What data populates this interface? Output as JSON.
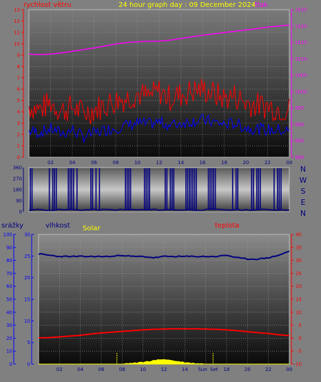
{
  "header": {
    "left_label": "rychlost větru",
    "center_label": "24 hour graph day : 09 December 2024",
    "right_label": "tlak"
  },
  "middle": {
    "direction_letters": [
      "N",
      "W",
      "S",
      "E",
      "N"
    ]
  },
  "bottom_header": {
    "rain_label": "srážky",
    "humidity_label": "vlhkost",
    "solar_label": "Solar",
    "temp_label": "teplota"
  },
  "colors": {
    "wind_gust": "#ff0000",
    "wind_avg": "#0000ff",
    "pressure": "#ff00ff",
    "direction": "#000080",
    "humidity": "#000080",
    "temperature": "#ff0000",
    "solar": "#ffff00",
    "header_left": "#ff0000",
    "header_center": "#ffff00",
    "header_right": "#ff00ff",
    "dir_letters": "#000080",
    "temp_axis": "#ff0000",
    "humidity_axis": "#0000ff",
    "rain_axis": "#0000ff"
  },
  "x_ticks": [
    "02",
    "04",
    "06",
    "08",
    "10",
    "12",
    "14",
    "16",
    "18",
    "20",
    "22",
    "00"
  ],
  "x_ticks_bottom": [
    "02",
    "04",
    "06",
    "08",
    "10",
    "12",
    "14",
    "Sun",
    "Set",
    "18",
    "20",
    "22",
    "00"
  ],
  "chart_data": [
    {
      "type": "line",
      "name": "wind_and_pressure",
      "x_hours": [
        0,
        1,
        2,
        3,
        4,
        5,
        6,
        7,
        8,
        9,
        10,
        11,
        12,
        13,
        14,
        15,
        16,
        17,
        18,
        19,
        20,
        21,
        22,
        23,
        24
      ],
      "y_left_ticks": [
        0,
        1,
        2,
        3,
        4,
        5,
        6,
        7,
        8,
        9,
        10,
        11,
        12,
        13
      ],
      "y_right_ticks": [
        980,
        985,
        990,
        995,
        1000,
        1005,
        1010,
        1015,
        1020,
        1025
      ],
      "ylim_left": [
        0,
        13
      ],
      "ylim_right": [
        980,
        1025
      ],
      "series": [
        {
          "name": "rychlost větru",
          "axis": "left",
          "style": "gust",
          "values": [
            4.5,
            4.2,
            4.8,
            4.1,
            4.4,
            3.9,
            4.2,
            4.6,
            5.0,
            5.2,
            5.6,
            5.3,
            5.8,
            5.2,
            5.5,
            5.8,
            6.0,
            5.6,
            5.2,
            5.4,
            4.8,
            4.6,
            4.5,
            4.3,
            4.2
          ]
        },
        {
          "name": "rychlost větru",
          "axis": "left",
          "style": "avg",
          "values": [
            2.3,
            2.2,
            2.5,
            2.1,
            2.4,
            1.8,
            2.1,
            2.4,
            2.6,
            2.8,
            3.0,
            2.9,
            3.1,
            2.8,
            3.0,
            3.2,
            3.3,
            3.1,
            2.9,
            3.0,
            2.6,
            2.5,
            2.4,
            2.4,
            2.3
          ]
        },
        {
          "name": "tlak",
          "axis": "right",
          "values": [
            1011.5,
            1011.3,
            1011.5,
            1011.8,
            1012.3,
            1012.8,
            1013.3,
            1013.9,
            1014.5,
            1015.0,
            1015.2,
            1015.4,
            1015.4,
            1015.7,
            1016.2,
            1016.7,
            1017.2,
            1017.6,
            1018.0,
            1018.4,
            1018.8,
            1019.2,
            1019.7,
            1020.0,
            1020.3
          ]
        }
      ]
    },
    {
      "type": "line",
      "name": "wind_direction",
      "y_ticks": [
        0,
        90,
        180,
        270,
        360
      ],
      "ylim": [
        0,
        360
      ],
      "values": [
        330,
        30,
        340,
        20,
        350,
        10,
        320,
        40,
        0,
        300,
        20,
        350,
        15,
        340,
        25,
        355,
        30,
        345,
        10,
        330,
        20,
        350,
        15,
        340,
        0
      ]
    },
    {
      "type": "line",
      "name": "rain_humidity_temp",
      "x_hours": [
        0,
        1,
        2,
        3,
        4,
        5,
        6,
        7,
        8,
        9,
        10,
        11,
        12,
        13,
        14,
        15,
        16,
        17,
        18,
        19,
        20,
        21,
        22,
        23,
        24
      ],
      "y_rain_ticks": [
        0,
        10,
        20,
        30,
        40,
        50,
        60,
        70,
        80,
        90,
        100
      ],
      "y_humidity_ticks": [
        0,
        5,
        10,
        15,
        20,
        25,
        30
      ],
      "y_temp_ticks": [
        -10,
        -5,
        0,
        5,
        10,
        15,
        20,
        25,
        30,
        35,
        40
      ],
      "ylim_rain": [
        0,
        100
      ],
      "ylim_humidity": [
        0,
        30
      ],
      "ylim_temp": [
        -10,
        40
      ],
      "series": [
        {
          "name": "vlhkost",
          "axis": "rain",
          "values": [
            85,
            84,
            83,
            83,
            83,
            83,
            83,
            83,
            84,
            83,
            83,
            82,
            83,
            83,
            83,
            83,
            83,
            83,
            84,
            82,
            81,
            81,
            82,
            84,
            87
          ]
        },
        {
          "name": "teplota",
          "axis": "temp",
          "values": [
            0.1,
            0.2,
            0.5,
            0.8,
            1.1,
            1.6,
            2.0,
            2.3,
            2.6,
            2.9,
            3.2,
            3.4,
            3.5,
            3.6,
            3.6,
            3.6,
            3.5,
            3.4,
            3.2,
            2.9,
            2.5,
            2.1,
            1.8,
            1.3,
            1.0
          ]
        },
        {
          "name": "Solar",
          "axis": "rain",
          "values": [
            0,
            0,
            0,
            0,
            0,
            0,
            0,
            0,
            0,
            0.5,
            1.2,
            2.5,
            3.5,
            2.2,
            1.0,
            0.3,
            0,
            0,
            0,
            0,
            0,
            0,
            0,
            0,
            0
          ]
        }
      ]
    }
  ]
}
